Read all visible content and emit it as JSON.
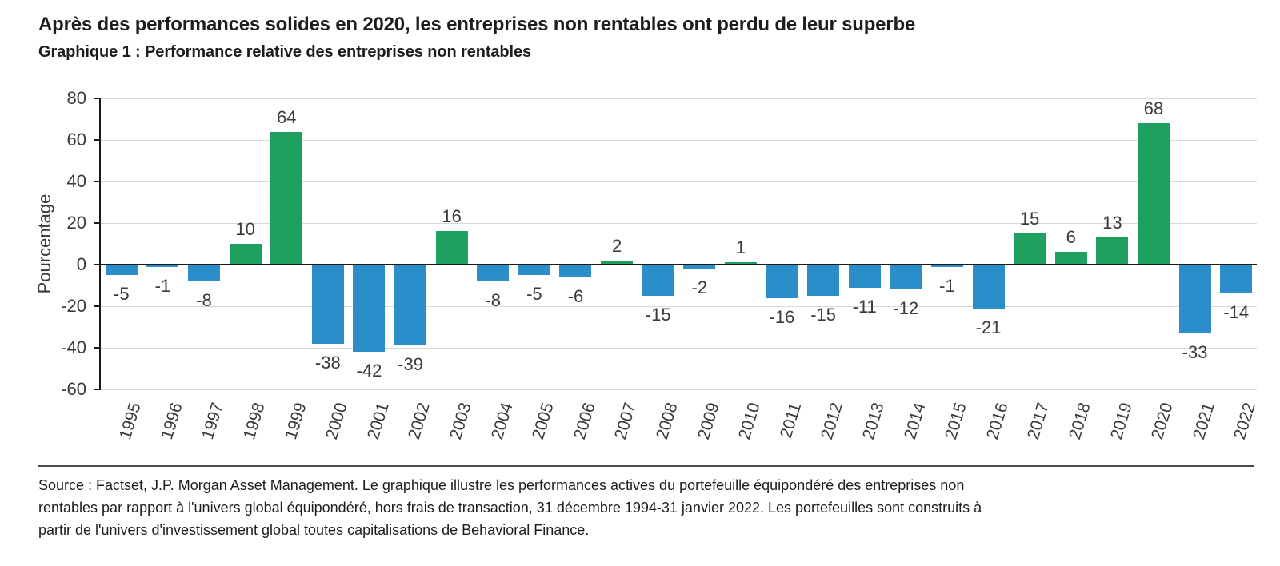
{
  "header": {
    "title": "Après des performances solides en 2020, les entreprises non rentables ont perdu de leur superbe",
    "subtitle": "Graphique 1 : Performance relative des entreprises non rentables"
  },
  "chart_data": {
    "type": "bar",
    "title": "Performance relative des entreprises non rentables",
    "categories": [
      "1995",
      "1996",
      "1997",
      "1998",
      "1999",
      "2000",
      "2001",
      "2002",
      "2003",
      "2004",
      "2005",
      "2006",
      "2007",
      "2008",
      "2009",
      "2010",
      "2011",
      "2012",
      "2013",
      "2014",
      "2015",
      "2016",
      "2017",
      "2018",
      "2019",
      "2020",
      "2021",
      "2022"
    ],
    "values": [
      -5,
      -1,
      -8,
      10,
      64,
      -38,
      -42,
      -39,
      16,
      -8,
      -5,
      -6,
      2,
      -15,
      -2,
      1,
      -16,
      -15,
      -11,
      -12,
      -1,
      -21,
      15,
      6,
      13,
      68,
      -33,
      -14
    ],
    "xlabel": "",
    "ylabel": "Pourcentage",
    "ylim": [
      -60,
      80
    ],
    "yticks": [
      80,
      60,
      40,
      20,
      0,
      -20,
      -40,
      -60
    ],
    "grid": true,
    "legend": "none",
    "value_labels": true,
    "positive_color": "#1FA061",
    "negative_color": "#2B8DCA"
  },
  "footer": {
    "source_lines": [
      "Source : Factset, J.P. Morgan Asset Management. Le graphique illustre les performances actives du portefeuille équipondéré des entreprises non",
      "rentables par rapport à l'univers global équipondéré, hors frais de transaction, 31 décembre 1994-31 janvier 2022. Les portefeuilles sont construits à",
      "partir de l'univers d'investissement global toutes capitalisations de Behavioral Finance."
    ]
  }
}
